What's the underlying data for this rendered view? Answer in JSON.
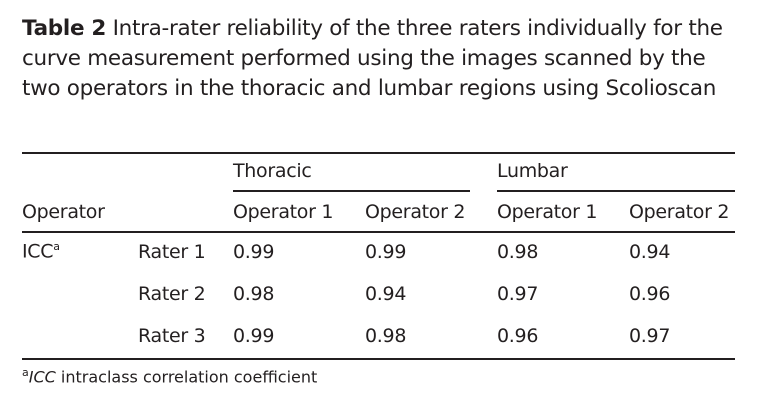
{
  "caption": {
    "label": "Table 2",
    "text": "Intra-rater reliability of the three raters individually for the curve measurement performed using the images scanned by the two operators in the thoracic and lumbar regions using Scolioscan"
  },
  "table": {
    "groups": [
      "Thoracic",
      "Lumbar"
    ],
    "row_header": "Operator",
    "columns": [
      "Operator 1",
      "Operator 2",
      "Operator 1",
      "Operator 2"
    ],
    "measure": "ICC",
    "measure_sup": "a",
    "rows": [
      {
        "label": "Rater 1",
        "values": [
          "0.99",
          "0.99",
          "0.98",
          "0.94"
        ]
      },
      {
        "label": "Rater 2",
        "values": [
          "0.98",
          "0.94",
          "0.97",
          "0.96"
        ]
      },
      {
        "label": "Rater 3",
        "values": [
          "0.99",
          "0.98",
          "0.96",
          "0.97"
        ]
      }
    ]
  },
  "footnote": {
    "sup": "a",
    "abbr": "ICC",
    "text": " intraclass correlation coefficient"
  }
}
